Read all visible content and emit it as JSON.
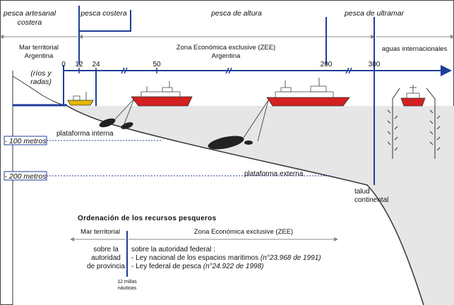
{
  "fishing_types": {
    "artesanal_line1": "pesca artesanal",
    "artesanal_line2": "costera",
    "costera": "pesca costera",
    "altura": "pesca de altura",
    "ultramar": "pesca de ultramar"
  },
  "zones": {
    "mar_territorial_line1": "Mar territorial",
    "mar_territorial_line2": "Argentina",
    "zee_line1": "Zona Económica exclusive (ZEE)",
    "zee_line2": "Argentina",
    "aguas_internacionales": "aguas internacionales"
  },
  "distance_ticks": [
    "0",
    "12",
    "24",
    "50",
    "200",
    "300"
  ],
  "rios_label_line1": "(ríos y",
  "rios_label_line2": "radas)",
  "depth_labels": {
    "d100": "- 100 metros",
    "d200": "- 200 metros"
  },
  "seabed_labels": {
    "interna": "plataforma interna",
    "externa": "plataforma externa",
    "talud_line1": "talud",
    "talud_line2": "continental"
  },
  "ordenacion": {
    "title": "Ordenación de los recursos pesqueros",
    "mar_territorial": "Mar territorial",
    "zee": "Zona Económica exclusive (ZEE)",
    "prov_line1": "sobre la",
    "prov_line2": "autoridad",
    "prov_line3": "de provincia",
    "fed_line1": "sobre la autoridad federal :",
    "fed_line2_text": "- Ley nacional de los espacios maritimos ",
    "fed_line2_ref": "(n°23.968 de 1991)",
    "fed_line3_text": "- Ley federal de pesca ",
    "fed_line3_ref": "(n°24.922 de 1998)",
    "millas_line1": "12 millas",
    "millas_line2": "náutioas"
  },
  "colors": {
    "ship_red": "#d42020",
    "line_blue": "#1f3d99",
    "sea_gray": "#e6e6e6"
  }
}
